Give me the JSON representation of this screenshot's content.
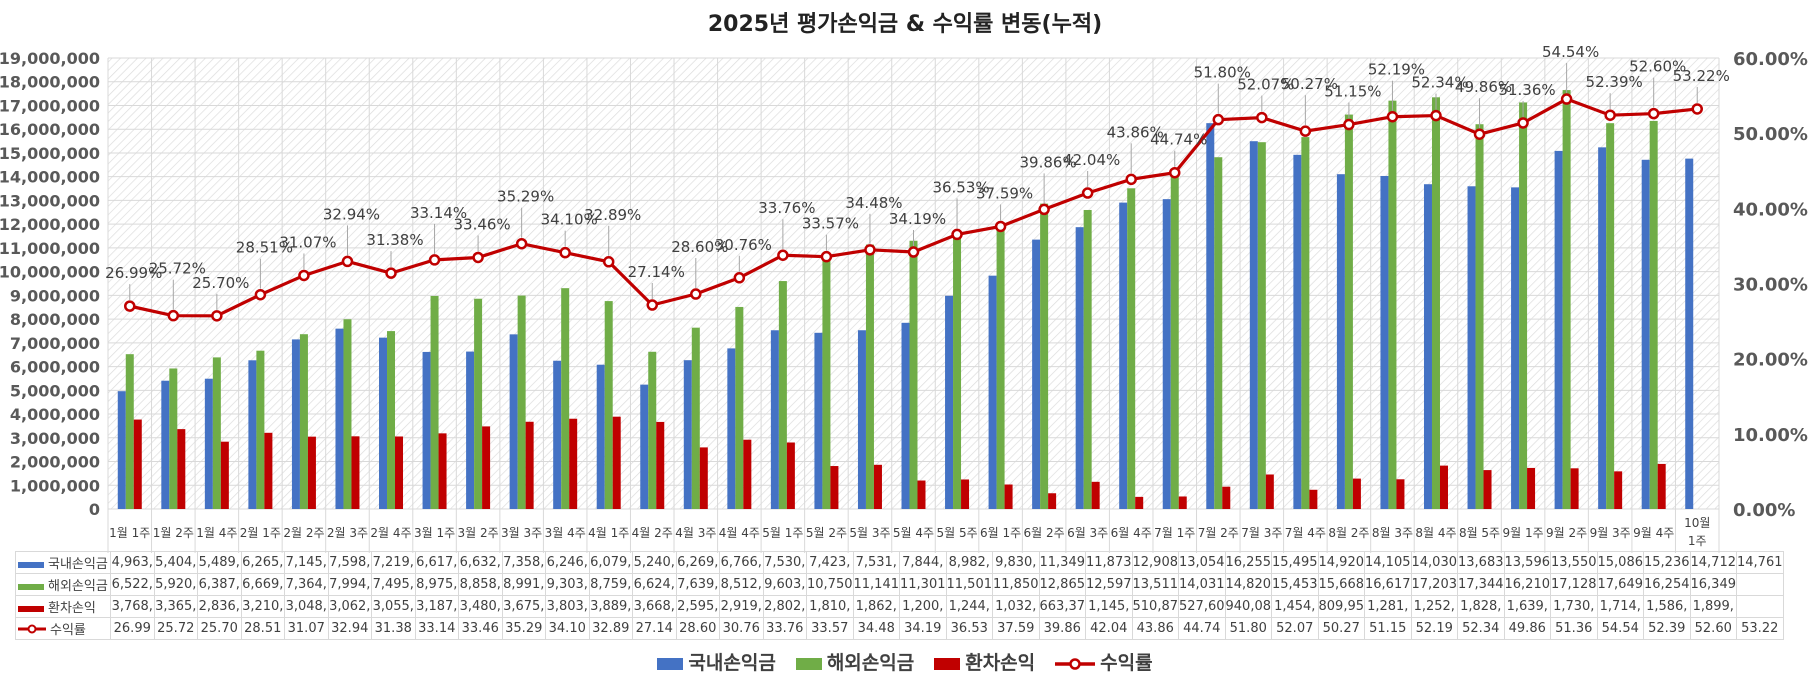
{
  "chart_data": {
    "type": "bar+line",
    "title": "2025년 평가손익금 & 수익률 변동(누적)",
    "categories": [
      "1월 1주",
      "1월 2주",
      "1월 4주",
      "2월 1주",
      "2월 2주",
      "2월 3주",
      "2월 4주",
      "3월 1주",
      "3월 2주",
      "3월 3주",
      "3월 4주",
      "4월 1주",
      "4월 2주",
      "4월 3주",
      "4월 4주",
      "5월 1주",
      "5월 2주",
      "5월 3주",
      "5월 4주",
      "5월 5주",
      "6월 1주",
      "6월 2주",
      "6월 3주",
      "6월 4주",
      "7월 1주",
      "7월 2주",
      "7월 3주",
      "7월 4주",
      "8월 2주",
      "8월 3주",
      "8월 4주",
      "8월 5주",
      "9월 1주",
      "9월 2주",
      "9월 3주",
      "9월 4주",
      "10월 1주"
    ],
    "left_axis": {
      "min": 0,
      "max": 19000000,
      "step": 1000000,
      "tick_labels": [
        "0",
        "1,000,000",
        "2,000,000",
        "3,000,000",
        "4,000,000",
        "5,000,000",
        "6,000,000",
        "7,000,000",
        "8,000,000",
        "9,000,000",
        "10,000,000",
        "11,000,000",
        "12,000,000",
        "13,000,000",
        "14,000,000",
        "15,000,000",
        "16,000,000",
        "17,000,000",
        "18,000,000",
        "19,000,000"
      ]
    },
    "right_axis": {
      "min": 0,
      "max": 60,
      "step": 10,
      "tick_labels": [
        "0.00%",
        "10.00%",
        "20.00%",
        "30.00%",
        "40.00%",
        "50.00%",
        "60.00%"
      ]
    },
    "series": [
      {
        "name": "국내손익금",
        "kind": "bar",
        "color": "#4472c4",
        "unit": "thousand KRW",
        "values": [
          4963,
          5404,
          5489,
          6265,
          7145,
          7598,
          7219,
          6617,
          6632,
          7358,
          6246,
          6079,
          5240,
          6269,
          6766,
          7530,
          7423,
          7531,
          7844,
          8982,
          9830,
          11349,
          11873,
          12908,
          13054,
          16255,
          15495,
          14920,
          14105,
          14030,
          13683,
          13596,
          13550,
          15086,
          15236,
          14712,
          14761
        ],
        "table": [
          "4,963,",
          "5,404,",
          "5,489,",
          "6,265,",
          "7,145,",
          "7,598,",
          "7,219,",
          "6,617,",
          "6,632,",
          "7,358,",
          "6,246,",
          "6,079,",
          "5,240,",
          "6,269,",
          "6,766,",
          "7,530,",
          "7,423,",
          "7,531,",
          "7,844,",
          "8,982,",
          "9,830,",
          "11,349",
          "11,873",
          "12,908",
          "13,054",
          "16,255",
          "15,495",
          "14,920",
          "14,105",
          "14,030",
          "13,683",
          "13,596",
          "13,550",
          "15,086",
          "15,236",
          "14,712",
          "14,761"
        ]
      },
      {
        "name": "해외손익금",
        "kind": "bar",
        "color": "#70ad47",
        "unit": "thousand KRW",
        "values": [
          6522,
          5920,
          6387,
          6669,
          7364,
          7994,
          7495,
          8975,
          8858,
          8991,
          9303,
          8759,
          6624,
          7639,
          8512,
          9603,
          10750,
          11141,
          11301,
          11501,
          11850,
          12865,
          12597,
          13511,
          14031,
          14820,
          15453,
          15668,
          16617,
          17203,
          17344,
          16210,
          17128,
          17649,
          16254,
          16349,
          null
        ],
        "table": [
          "6,522,",
          "5,920,",
          "6,387,",
          "6,669,",
          "7,364,",
          "7,994,",
          "7,495,",
          "8,975,",
          "8,858,",
          "8,991,",
          "9,303,",
          "8,759,",
          "6,624,",
          "7,639,",
          "8,512,",
          "9,603,",
          "10,750",
          "11,141",
          "11,301",
          "11,501",
          "11,850",
          "12,865",
          "12,597",
          "13,511",
          "14,031",
          "14,820",
          "15,453",
          "15,668",
          "16,617",
          "17,203",
          "17,344",
          "16,210",
          "17,128",
          "17,649",
          "16,254",
          "16,349",
          ""
        ]
      },
      {
        "name": "환차손익",
        "kind": "bar",
        "color": "#c00000",
        "unit": "thousand KRW",
        "values": [
          3768,
          3365,
          2836,
          3210,
          3048,
          3062,
          3055,
          3187,
          3480,
          3675,
          3803,
          3889,
          3668,
          2595,
          2919,
          2802,
          1810,
          1862,
          1200,
          1244,
          1032,
          663.37,
          1145,
          510.87,
          527.6,
          940.08,
          1454,
          809.95,
          1281,
          1252,
          1828,
          1639,
          1730,
          1714,
          1586,
          1899,
          null
        ],
        "table": [
          "3,768,",
          "3,365,",
          "2,836,",
          "3,210,",
          "3,048,",
          "3,062,",
          "3,055,",
          "3,187,",
          "3,480,",
          "3,675,",
          "3,803,",
          "3,889,",
          "3,668,",
          "2,595,",
          "2,919,",
          "2,802,",
          "1,810,",
          "1,862,",
          "1,200,",
          "1,244,",
          "1,032,",
          "663,37",
          "1,145,",
          "510,87",
          "527,60",
          "940,08",
          "1,454,",
          "809,95",
          "1,281,",
          "1,252,",
          "1,828,",
          "1,639,",
          "1,730,",
          "1,714,",
          "1,586,",
          "1,899,",
          ""
        ]
      },
      {
        "name": "수익률",
        "kind": "line",
        "color": "#c00000",
        "axis": "right",
        "unit": "%",
        "values": [
          26.99,
          25.72,
          25.7,
          28.51,
          31.07,
          32.94,
          31.38,
          33.14,
          33.46,
          35.29,
          34.1,
          32.89,
          27.14,
          28.6,
          30.76,
          33.76,
          33.57,
          34.48,
          34.19,
          36.53,
          37.59,
          39.86,
          42.04,
          43.86,
          44.74,
          51.8,
          52.07,
          50.27,
          51.15,
          52.19,
          52.34,
          49.86,
          51.36,
          54.54,
          52.39,
          52.6,
          53.22
        ],
        "labels": [
          "26.99%",
          "25.72%",
          "25.70%",
          "28.51%",
          "31.07%",
          "32.94%",
          "31.38%",
          "33.14%",
          "33.46%",
          "35.29%",
          "34.10%",
          "32.89%",
          "27.14%",
          "28.60%",
          "30.76%",
          "33.76%",
          "33.57%",
          "34.48%",
          "34.19%",
          "36.53%",
          "37.59%",
          "39.86%",
          "42.04%",
          "43.86%",
          "44.74%",
          "51.80%",
          "52.07%",
          "50.27%",
          "51.15%",
          "52.19%",
          "52.34%",
          "49.86%",
          "51.36%",
          "54.54%",
          "52.39%",
          "52.60%",
          "53.22%"
        ],
        "table": [
          "26.99",
          "25.72",
          "25.70",
          "28.51",
          "31.07",
          "32.94",
          "31.38",
          "33.14",
          "33.46",
          "35.29",
          "34.10",
          "32.89",
          "27.14",
          "28.60",
          "30.76",
          "33.76",
          "33.57",
          "34.48",
          "34.19",
          "36.53",
          "37.59",
          "39.86",
          "42.04",
          "43.86",
          "44.74",
          "51.80",
          "52.07",
          "50.27",
          "51.15",
          "52.19",
          "52.34",
          "49.86",
          "51.36",
          "54.54",
          "52.39",
          "52.60",
          "53.22"
        ]
      }
    ],
    "legend_position": "bottom",
    "grid": true
  }
}
